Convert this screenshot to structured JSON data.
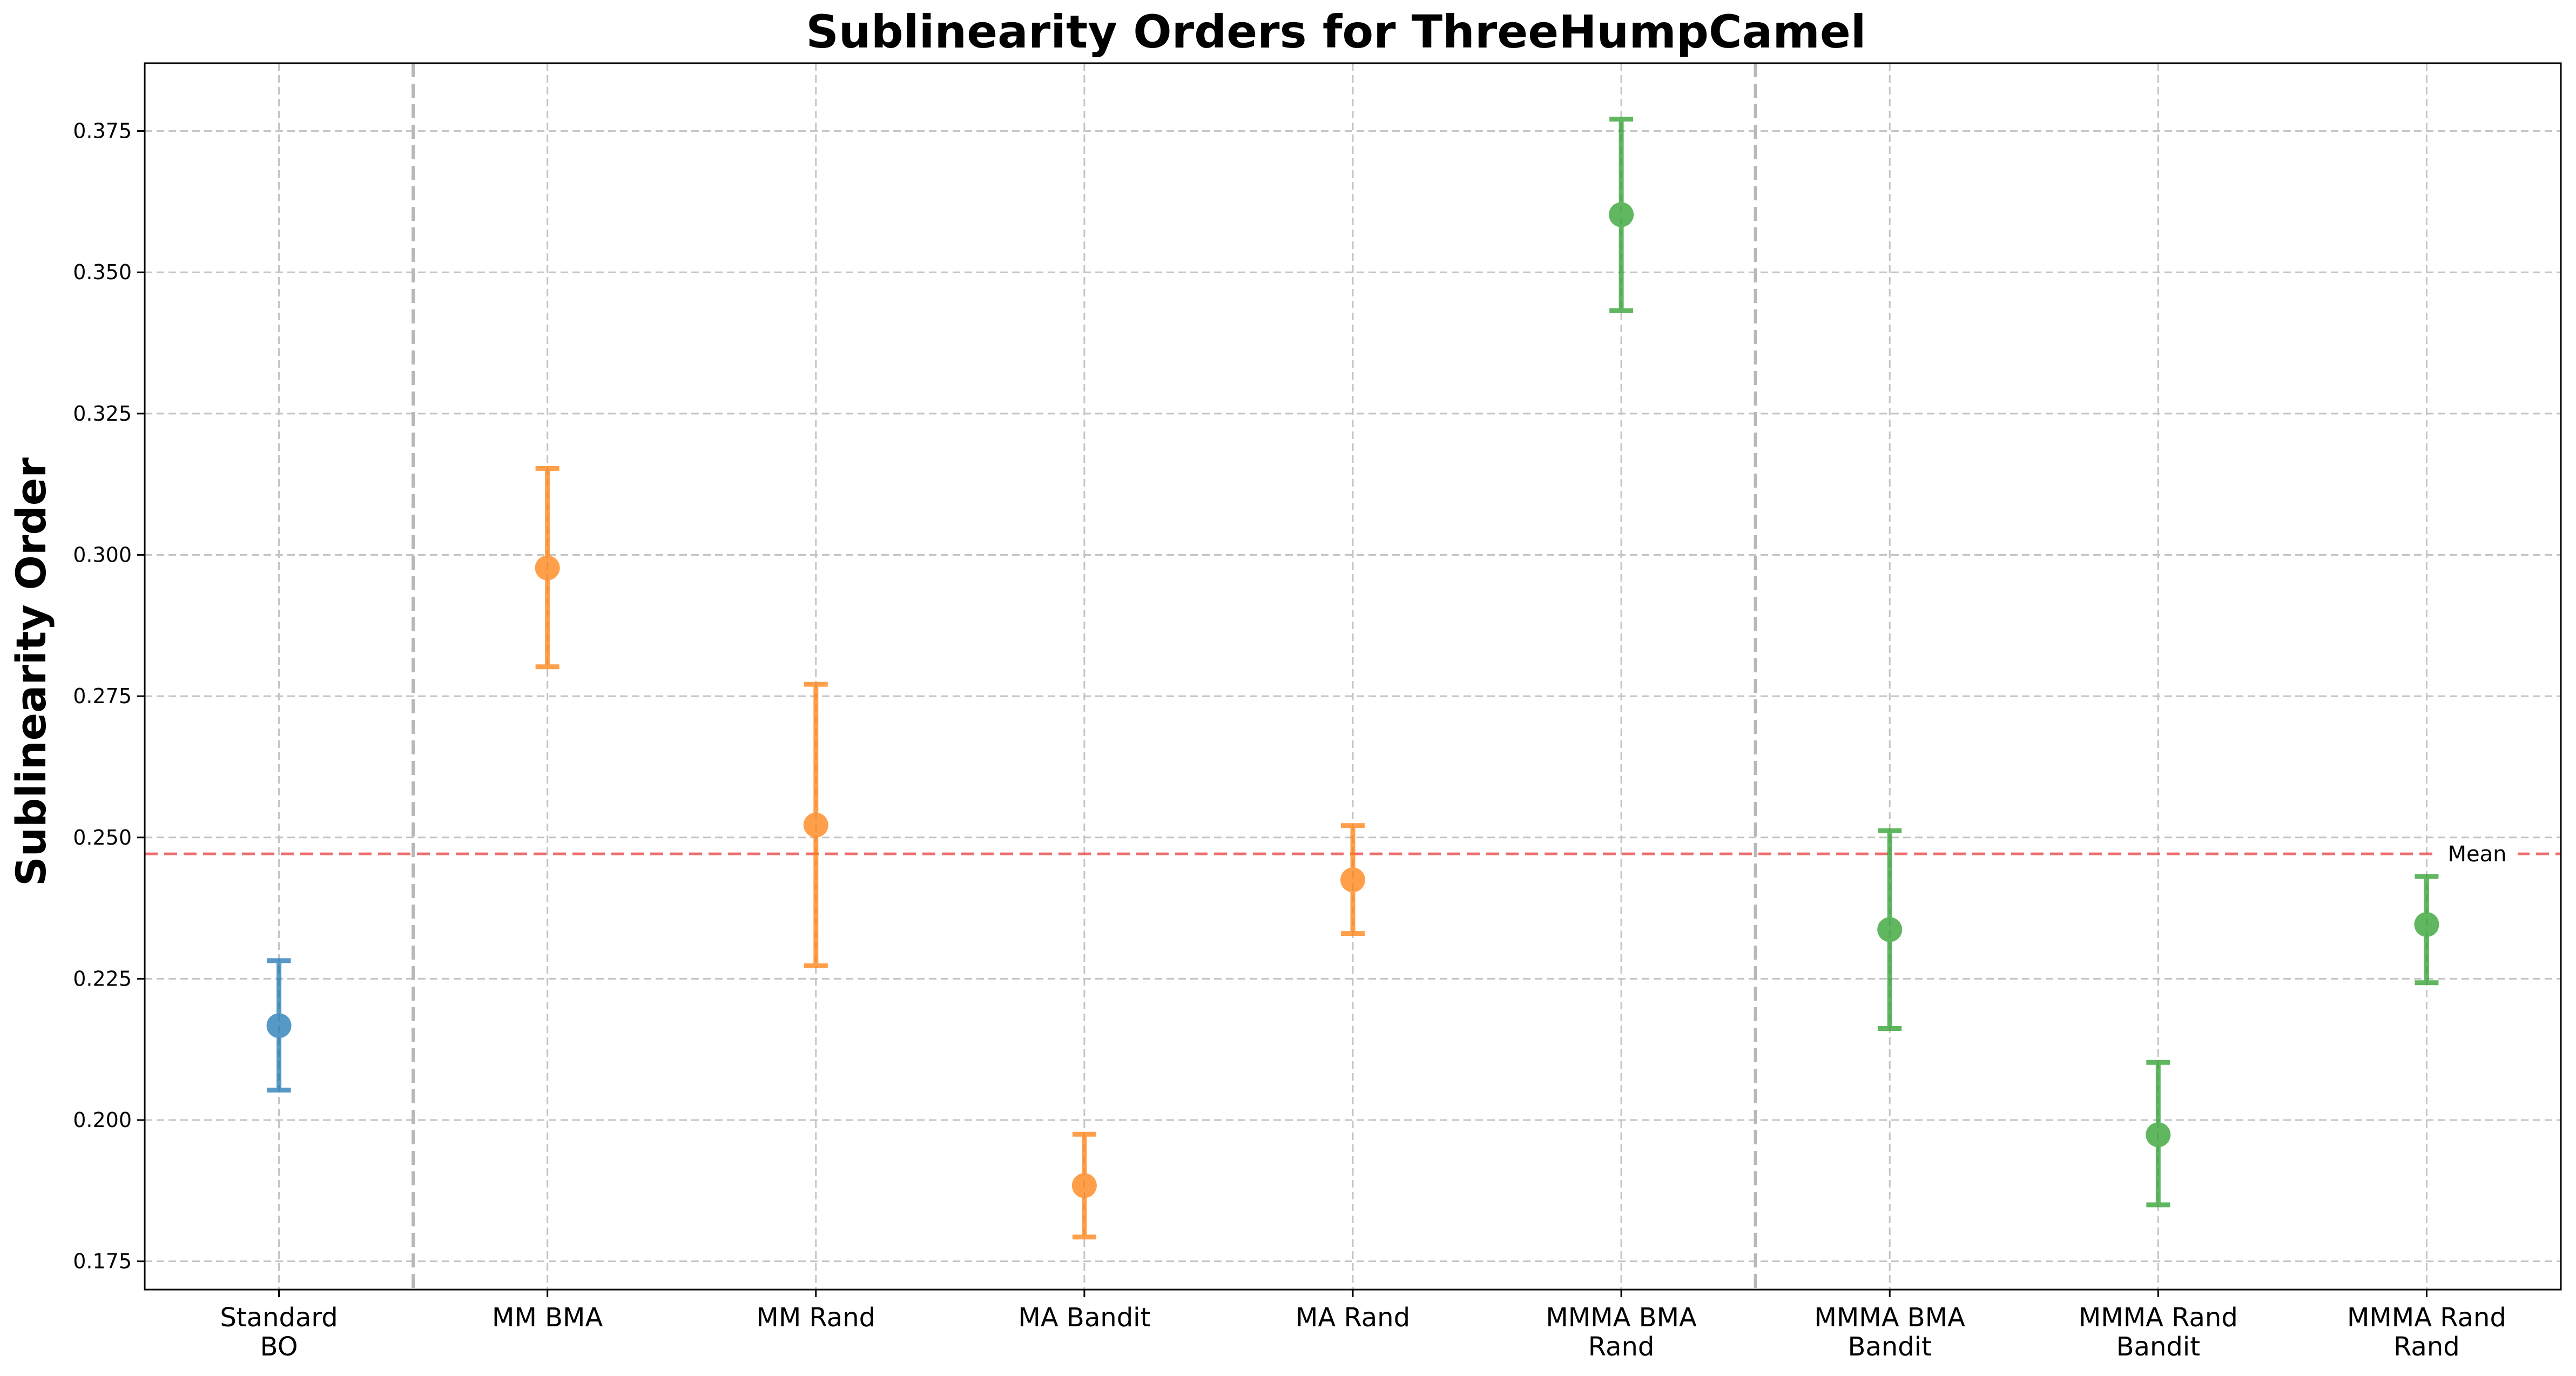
{
  "chart_data": {
    "type": "scatter",
    "title": "Sublinearity Orders for ThreeHumpCamel",
    "xlabel": "",
    "ylabel": "Sublinearity Order",
    "ylim": [
      0.17,
      0.387
    ],
    "yticks": [
      "0.175",
      "0.200",
      "0.225",
      "0.250",
      "0.275",
      "0.300",
      "0.325",
      "0.350",
      "0.375"
    ],
    "grid": true,
    "categories": [
      [
        "Standard",
        "BO"
      ],
      [
        "MM BMA"
      ],
      [
        "MM Rand"
      ],
      [
        "MA Bandit"
      ],
      [
        "MA Rand"
      ],
      [
        "MMMA BMA",
        "Rand"
      ],
      [
        "MMMA BMA",
        "Bandit"
      ],
      [
        "MMMA Rand",
        "Bandit"
      ],
      [
        "MMMA Rand",
        "Rand"
      ]
    ],
    "points": [
      {
        "value": 0.2167,
        "lower": 0.2053,
        "upper": 0.2282,
        "color": "#1f77b4"
      },
      {
        "value": 0.2977,
        "lower": 0.2802,
        "upper": 0.3153,
        "color": "#ff7f0e"
      },
      {
        "value": 0.2522,
        "lower": 0.2273,
        "upper": 0.2771,
        "color": "#ff7f0e"
      },
      {
        "value": 0.1884,
        "lower": 0.1793,
        "upper": 0.1975,
        "color": "#ff7f0e"
      },
      {
        "value": 0.2425,
        "lower": 0.233,
        "upper": 0.2521,
        "color": "#ff7f0e"
      },
      {
        "value": 0.3602,
        "lower": 0.3432,
        "upper": 0.3771,
        "color": "#2ca02c"
      },
      {
        "value": 0.2337,
        "lower": 0.2162,
        "upper": 0.2512,
        "color": "#2ca02c"
      },
      {
        "value": 0.1974,
        "lower": 0.185,
        "upper": 0.2102,
        "color": "#2ca02c"
      },
      {
        "value": 0.2346,
        "lower": 0.2243,
        "upper": 0.2431,
        "color": "#2ca02c"
      }
    ],
    "group_separators_after": [
      0,
      5
    ],
    "mean": {
      "value": 0.2471,
      "label": "Mean",
      "color": "#e84a4a"
    }
  }
}
